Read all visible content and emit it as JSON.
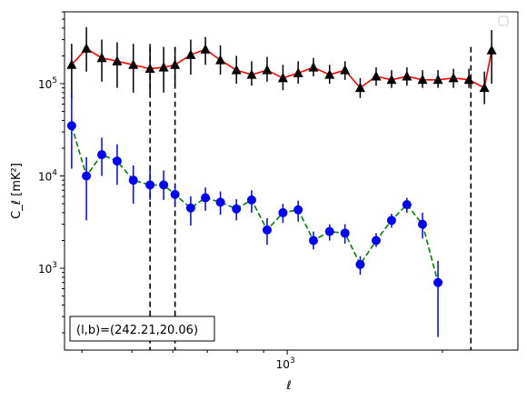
{
  "chart_data": {
    "type": "scatter",
    "xlabel": "ℓ",
    "ylabel": "C_ℓ  [mK²]",
    "xscale": "log",
    "yscale": "log",
    "xlim": [
      370,
      2800
    ],
    "ylim": [
      130,
      600000
    ],
    "legend": {
      "position": "upper right",
      "entries": []
    },
    "annotation": "(l,b)=(242.21,20.06)",
    "x_tick_labels": [
      {
        "value": 1000,
        "base": "10",
        "exp": "3"
      }
    ],
    "y_tick_labels": [
      {
        "value": 1000,
        "base": "10",
        "exp": "3"
      },
      {
        "value": 10000,
        "base": "10",
        "exp": "4"
      },
      {
        "value": 100000,
        "base": "10",
        "exp": "5"
      }
    ],
    "vlines": [
      {
        "x": 542,
        "style": "dashed",
        "color": "#000000"
      },
      {
        "x": 606,
        "style": "dashed",
        "color": "#000000"
      },
      {
        "x": 2270,
        "style": "dashed",
        "color": "#000000"
      }
    ],
    "series": [
      {
        "marker": "triangle",
        "color": "#000000",
        "line_color": "#ff0000",
        "line_style": "solid",
        "x": [
          382,
          408,
          437,
          468,
          503,
          542,
          576,
          606,
          650,
          694,
          742,
          797,
          853,
          914,
          981,
          1050,
          1124,
          1208,
          1294,
          1385,
          1487,
          1593,
          1706,
          1829,
          1960,
          2100,
          2250,
          2411,
          2490
        ],
        "y": [
          160000,
          240000,
          190000,
          175000,
          160000,
          145000,
          150000,
          160000,
          205000,
          235000,
          180000,
          140000,
          125000,
          140000,
          115000,
          130000,
          150000,
          125000,
          140000,
          90000,
          120000,
          110000,
          120000,
          110000,
          110000,
          115000,
          110000,
          90000,
          230000
        ],
        "y_low": [
          70000,
          135000,
          105000,
          90000,
          80000,
          80000,
          80000,
          95000,
          125000,
          160000,
          125000,
          100000,
          95000,
          105000,
          85000,
          100000,
          120000,
          100000,
          110000,
          70000,
          95000,
          90000,
          95000,
          90000,
          90000,
          90000,
          90000,
          60000,
          100000
        ],
        "y_high": [
          270000,
          410000,
          300000,
          280000,
          270000,
          270000,
          250000,
          250000,
          300000,
          320000,
          260000,
          200000,
          175000,
          195000,
          160000,
          175000,
          190000,
          160000,
          175000,
          115000,
          150000,
          140000,
          150000,
          140000,
          140000,
          145000,
          145000,
          135000,
          380000
        ]
      },
      {
        "marker": "circle",
        "color": "#0000ff",
        "line_color": "#008000",
        "line_style": "dashed",
        "x": [
          382,
          408,
          437,
          468,
          503,
          542,
          576,
          606,
          650,
          694,
          742,
          797,
          853,
          914,
          981,
          1050,
          1124,
          1208,
          1294,
          1385,
          1487,
          1593,
          1706,
          1829,
          1960,
          2100,
          2250,
          2411,
          2490
        ],
        "y": [
          35000,
          10000,
          17000,
          14500,
          9000,
          8000,
          8000,
          6300,
          4500,
          5800,
          5200,
          4400,
          5500,
          2600,
          4000,
          4300,
          2000,
          2500,
          2400,
          1100,
          2000,
          3300,
          4900,
          3000,
          700,
          0,
          0,
          0,
          0
        ],
        "y_low": [
          12000,
          3300,
          10000,
          8000,
          5000,
          5500,
          5500,
          4800,
          2900,
          4200,
          3800,
          3300,
          4000,
          1800,
          3100,
          3200,
          1600,
          2000,
          1850,
          850,
          1700,
          2750,
          4000,
          2100,
          180,
          0,
          0,
          0,
          0
        ],
        "y_high": [
          80000,
          16000,
          26000,
          22000,
          13000,
          11500,
          11500,
          8000,
          6000,
          7500,
          6800,
          5600,
          7000,
          3500,
          5000,
          5400,
          2500,
          3000,
          3000,
          1350,
          2400,
          3900,
          5800,
          4000,
          1200,
          0,
          0,
          0,
          0
        ]
      }
    ]
  }
}
